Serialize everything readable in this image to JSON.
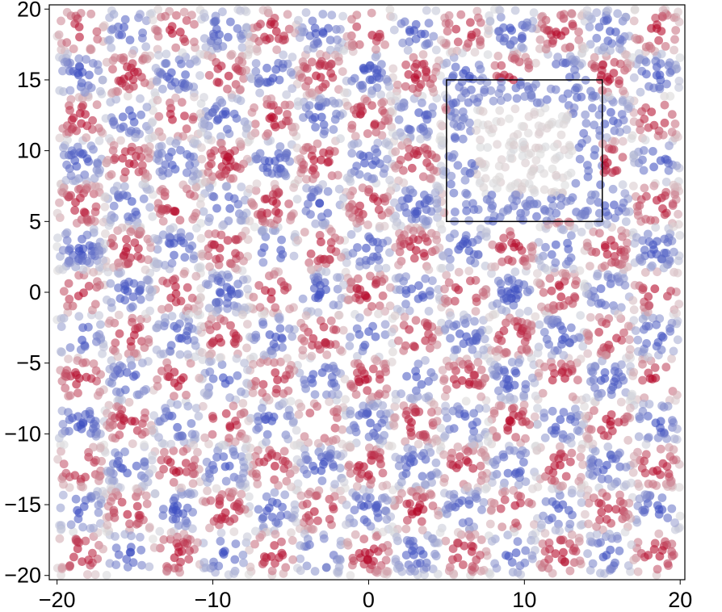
{
  "chart_data": {
    "type": "scatter",
    "title": "",
    "xlabel": "",
    "ylabel": "",
    "xlim": [
      -20.5,
      20.3
    ],
    "ylim": [
      -20.3,
      20.3
    ],
    "xticks": [
      -20,
      -10,
      0,
      10,
      20
    ],
    "yticks": [
      -20,
      -15,
      -10,
      -5,
      0,
      5,
      10,
      15,
      20
    ],
    "xtick_labels": [
      "−20",
      "−10",
      "0",
      "10",
      "20"
    ],
    "ytick_labels": [
      "−20",
      "−15",
      "−10",
      "−5",
      "0",
      "5",
      "10",
      "15",
      "20"
    ],
    "grid": false,
    "legend": "none",
    "colormap": "coolwarm",
    "marker_alpha": 0.6,
    "point_pattern": {
      "description": "checkerboard of point clusters with alternating sign values",
      "x_range": [
        -20,
        20
      ],
      "y_range": [
        -20,
        20
      ],
      "cell_count_x": 13,
      "cell_count_y": 13,
      "value_function": "sin(pi*x/3.08) * sin(pi*y/3.08) style checkerboard in [-1, 1]"
    },
    "highlight_region": {
      "x": [
        5,
        15
      ],
      "y": [
        5,
        15
      ],
      "stroke_color": "#000000",
      "interior_pattern": "ring: low-value outer band, near-zero centre"
    },
    "colors": {
      "low": "#3b4cc0",
      "mid": "#dddddd",
      "high": "#b40426"
    }
  }
}
